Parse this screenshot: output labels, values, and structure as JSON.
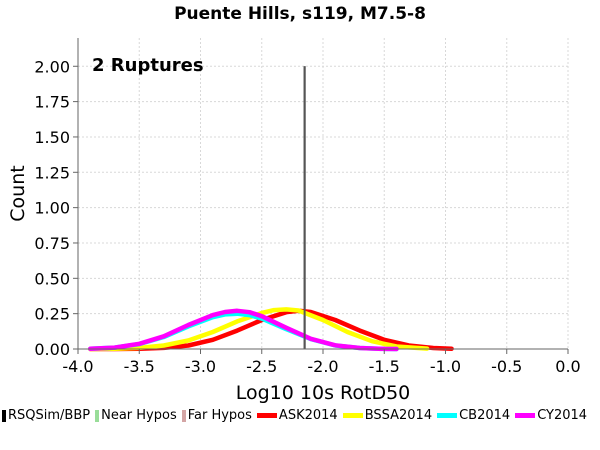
{
  "chart_data": {
    "type": "line",
    "title": "Puente Hills, s119, M7.5-8",
    "annotation": "2 Ruptures",
    "xlabel": "Log10 10s RotD50",
    "ylabel": "Count",
    "xlim": [
      -4.0,
      0.0
    ],
    "ylim": [
      0.0,
      2.2
    ],
    "xticks": [
      "-4.0",
      "-3.5",
      "-3.0",
      "-2.5",
      "-2.0",
      "-1.5",
      "-1.0",
      "-0.5",
      "0.0"
    ],
    "yticks": [
      "0.00",
      "0.25",
      "0.50",
      "0.75",
      "1.00",
      "1.25",
      "1.50",
      "1.75",
      "2.00"
    ],
    "grid": true,
    "legend_placement": "bottom",
    "series": [
      {
        "name": "RSQSim/BBP",
        "color": "#000000",
        "kind": "bar",
        "x": [
          -2.15
        ],
        "y": [
          2.0
        ]
      },
      {
        "name": "Near Hypos",
        "color": "#99dd99",
        "kind": "bar",
        "x": [],
        "y": []
      },
      {
        "name": "Far Hypos",
        "color": "#d4a5a5",
        "kind": "bar",
        "x": [],
        "y": []
      },
      {
        "name": "ASK2014",
        "color": "#ff0000",
        "kind": "curve",
        "x": [
          -3.9,
          -3.7,
          -3.5,
          -3.3,
          -3.1,
          -2.9,
          -2.7,
          -2.5,
          -2.3,
          -2.2,
          -2.1,
          -1.9,
          -1.7,
          -1.5,
          -1.3,
          -1.1,
          -0.95
        ],
        "y": [
          0.0,
          0.0,
          0.002,
          0.008,
          0.025,
          0.065,
          0.13,
          0.205,
          0.26,
          0.27,
          0.262,
          0.205,
          0.13,
          0.065,
          0.025,
          0.007,
          0.002
        ]
      },
      {
        "name": "BSSA2014",
        "color": "#ffff00",
        "kind": "curve",
        "x": [
          -3.9,
          -3.7,
          -3.5,
          -3.3,
          -3.1,
          -2.9,
          -2.7,
          -2.5,
          -2.4,
          -2.3,
          -2.2,
          -2.0,
          -1.8,
          -1.6,
          -1.4,
          -1.15
        ],
        "y": [
          0.0,
          0.002,
          0.008,
          0.025,
          0.06,
          0.12,
          0.195,
          0.255,
          0.275,
          0.28,
          0.272,
          0.205,
          0.12,
          0.055,
          0.018,
          0.003
        ]
      },
      {
        "name": "CB2014",
        "color": "#00ffff",
        "kind": "curve",
        "x": [
          -3.9,
          -3.7,
          -3.5,
          -3.3,
          -3.1,
          -2.9,
          -2.8,
          -2.7,
          -2.6,
          -2.5,
          -2.3,
          -2.1,
          -1.9,
          -1.7,
          -1.5,
          -1.4
        ],
        "y": [
          0.002,
          0.01,
          0.035,
          0.085,
          0.16,
          0.225,
          0.245,
          0.25,
          0.24,
          0.215,
          0.14,
          0.07,
          0.025,
          0.007,
          0.001,
          0.0
        ]
      },
      {
        "name": "CY2014",
        "color": "#ff00ff",
        "kind": "curve",
        "x": [
          -3.9,
          -3.7,
          -3.5,
          -3.3,
          -3.1,
          -2.9,
          -2.8,
          -2.7,
          -2.6,
          -2.5,
          -2.3,
          -2.1,
          -1.9,
          -1.7,
          -1.5,
          -1.4
        ],
        "y": [
          0.002,
          0.01,
          0.037,
          0.09,
          0.17,
          0.24,
          0.262,
          0.27,
          0.26,
          0.232,
          0.15,
          0.072,
          0.026,
          0.007,
          0.001,
          0.0
        ]
      }
    ]
  }
}
